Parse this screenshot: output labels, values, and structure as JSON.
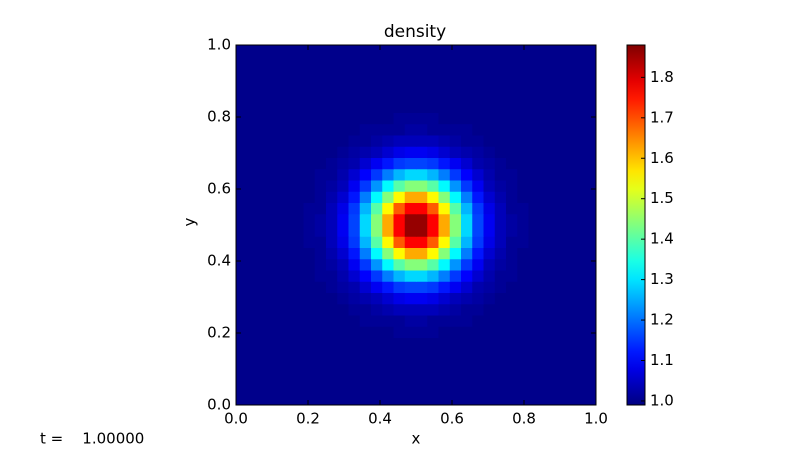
{
  "chart_data": {
    "type": "heatmap",
    "title": "density",
    "x_label": "x",
    "y_label": "y",
    "annotation": "t =    1.00000",
    "colormap": "jet",
    "xlim": [
      0,
      1
    ],
    "ylim": [
      0,
      1
    ],
    "xticks": [
      {
        "value": 0,
        "label": "0.0"
      },
      {
        "value": 0.2,
        "label": "0.2"
      },
      {
        "value": 0.4,
        "label": "0.4"
      },
      {
        "value": 0.6,
        "label": "0.6"
      },
      {
        "value": 0.8,
        "label": "0.8"
      },
      {
        "value": 1,
        "label": "1.0"
      }
    ],
    "yticks": [
      {
        "value": 0,
        "label": "0.0"
      },
      {
        "value": 0.2,
        "label": "0.2"
      },
      {
        "value": 0.4,
        "label": "0.4"
      },
      {
        "value": 0.6,
        "label": "0.6"
      },
      {
        "value": 0.8,
        "label": "0.8"
      },
      {
        "value": 1,
        "label": "1.0"
      }
    ],
    "clim": [
      0.99,
      1.88
    ],
    "cticks": [
      {
        "value": 1,
        "label": "1.0"
      },
      1.1,
      1.2,
      1.3,
      1.4,
      1.5,
      1.6,
      1.7,
      1.8
    ],
    "z": [
      [
        1,
        1,
        1,
        1,
        1,
        1,
        1,
        1,
        1,
        1,
        1,
        1,
        1,
        1,
        1,
        1,
        1,
        1,
        1,
        1,
        1,
        1,
        1,
        1,
        1,
        1,
        1,
        1,
        1,
        1,
        1,
        1
      ],
      [
        1,
        1,
        1,
        1,
        1,
        1,
        1,
        1,
        1,
        1,
        1,
        1,
        1,
        1,
        1,
        1,
        1,
        1,
        1,
        1,
        1,
        1,
        1,
        1,
        1,
        1,
        1,
        1,
        1,
        1,
        1,
        1
      ],
      [
        1,
        1,
        1,
        1,
        1,
        1,
        1,
        1,
        1,
        1,
        1,
        1,
        1,
        1,
        1,
        1,
        1,
        1,
        1,
        1,
        1,
        1,
        1,
        1,
        1,
        1,
        1,
        1,
        1,
        1,
        1,
        1
      ],
      [
        1,
        1,
        1,
        1,
        1,
        1,
        1,
        1,
        1,
        1,
        1,
        1,
        1,
        1,
        1,
        1,
        1,
        1,
        1,
        1,
        1,
        1,
        1,
        1,
        1,
        1,
        1,
        1,
        1,
        1,
        1,
        1
      ],
      [
        1,
        1,
        1,
        1,
        1,
        1,
        1,
        1,
        1,
        1,
        1,
        1,
        1,
        1,
        1,
        1,
        1,
        1,
        1,
        1,
        1,
        1,
        1,
        1,
        1,
        1,
        1,
        1,
        1,
        1,
        1,
        1
      ],
      [
        1,
        1,
        1,
        1,
        1,
        1,
        1,
        1,
        1,
        1,
        1,
        1,
        1,
        1,
        1,
        1,
        1,
        1,
        1,
        1,
        1,
        1,
        1,
        1,
        1,
        1,
        1,
        1,
        1,
        1,
        1,
        1
      ],
      [
        1,
        1,
        1,
        1,
        1,
        1,
        1,
        1,
        1,
        1,
        1,
        1,
        1,
        1,
        1.01,
        1.01,
        1.01,
        1.01,
        1,
        1,
        1,
        1,
        1,
        1,
        1,
        1,
        1,
        1,
        1,
        1,
        1,
        1
      ],
      [
        1,
        1,
        1,
        1,
        1,
        1,
        1,
        1,
        1,
        1,
        1,
        1.01,
        1.01,
        1.01,
        1.01,
        1.02,
        1.02,
        1.01,
        1.01,
        1.01,
        1.01,
        1,
        1,
        1,
        1,
        1,
        1,
        1,
        1,
        1,
        1,
        1
      ],
      [
        1,
        1,
        1,
        1,
        1,
        1,
        1,
        1,
        1,
        1,
        1.01,
        1.01,
        1.02,
        1.03,
        1.04,
        1.04,
        1.04,
        1.04,
        1.03,
        1.02,
        1.01,
        1.01,
        1,
        1,
        1,
        1,
        1,
        1,
        1,
        1,
        1,
        1
      ],
      [
        1,
        1,
        1,
        1,
        1,
        1,
        1,
        1,
        1,
        1.01,
        1.02,
        1.03,
        1.04,
        1.06,
        1.08,
        1.09,
        1.09,
        1.08,
        1.06,
        1.04,
        1.03,
        1.02,
        1.01,
        1,
        1,
        1,
        1,
        1,
        1,
        1,
        1,
        1
      ],
      [
        1,
        1,
        1,
        1,
        1,
        1,
        1,
        1,
        1.01,
        1.02,
        1.03,
        1.06,
        1.09,
        1.12,
        1.15,
        1.16,
        1.16,
        1.15,
        1.12,
        1.09,
        1.06,
        1.03,
        1.02,
        1.01,
        1,
        1,
        1,
        1,
        1,
        1,
        1,
        1
      ],
      [
        1,
        1,
        1,
        1,
        1,
        1,
        1,
        1.01,
        1.01,
        1.03,
        1.06,
        1.1,
        1.15,
        1.21,
        1.26,
        1.29,
        1.29,
        1.26,
        1.21,
        1.15,
        1.1,
        1.06,
        1.03,
        1.01,
        1.01,
        1,
        1,
        1,
        1,
        1,
        1,
        1
      ],
      [
        1,
        1,
        1,
        1,
        1,
        1,
        1,
        1.01,
        1.02,
        1.04,
        1.09,
        1.15,
        1.23,
        1.32,
        1.4,
        1.44,
        1.44,
        1.4,
        1.32,
        1.23,
        1.15,
        1.09,
        1.04,
        1.02,
        1.01,
        1,
        1,
        1,
        1,
        1,
        1,
        1
      ],
      [
        1,
        1,
        1,
        1,
        1,
        1,
        1,
        1.01,
        1.03,
        1.06,
        1.12,
        1.21,
        1.32,
        1.44,
        1.55,
        1.62,
        1.62,
        1.55,
        1.44,
        1.32,
        1.21,
        1.12,
        1.06,
        1.03,
        1.01,
        1,
        1,
        1,
        1,
        1,
        1,
        1
      ],
      [
        1,
        1,
        1,
        1,
        1,
        1,
        1.01,
        1.01,
        1.04,
        1.08,
        1.15,
        1.26,
        1.4,
        1.55,
        1.69,
        1.77,
        1.77,
        1.69,
        1.55,
        1.4,
        1.26,
        1.15,
        1.08,
        1.04,
        1.01,
        1.01,
        1,
        1,
        1,
        1,
        1,
        1
      ],
      [
        1,
        1,
        1,
        1,
        1,
        1,
        1.01,
        1.02,
        1.04,
        1.09,
        1.16,
        1.29,
        1.44,
        1.62,
        1.77,
        1.86,
        1.86,
        1.77,
        1.62,
        1.44,
        1.29,
        1.16,
        1.09,
        1.04,
        1.02,
        1.01,
        1,
        1,
        1,
        1,
        1,
        1
      ],
      [
        1,
        1,
        1,
        1,
        1,
        1,
        1.01,
        1.02,
        1.04,
        1.09,
        1.16,
        1.29,
        1.44,
        1.62,
        1.77,
        1.86,
        1.86,
        1.77,
        1.62,
        1.44,
        1.29,
        1.16,
        1.09,
        1.04,
        1.02,
        1.01,
        1,
        1,
        1,
        1,
        1,
        1
      ],
      [
        1,
        1,
        1,
        1,
        1,
        1,
        1.01,
        1.01,
        1.04,
        1.08,
        1.15,
        1.26,
        1.4,
        1.55,
        1.69,
        1.77,
        1.77,
        1.69,
        1.55,
        1.4,
        1.26,
        1.15,
        1.08,
        1.04,
        1.01,
        1.01,
        1,
        1,
        1,
        1,
        1,
        1
      ],
      [
        1,
        1,
        1,
        1,
        1,
        1,
        1,
        1.01,
        1.03,
        1.06,
        1.12,
        1.21,
        1.32,
        1.44,
        1.55,
        1.62,
        1.62,
        1.55,
        1.44,
        1.32,
        1.21,
        1.12,
        1.06,
        1.03,
        1.01,
        1,
        1,
        1,
        1,
        1,
        1,
        1
      ],
      [
        1,
        1,
        1,
        1,
        1,
        1,
        1,
        1.01,
        1.02,
        1.04,
        1.09,
        1.15,
        1.23,
        1.32,
        1.4,
        1.44,
        1.44,
        1.4,
        1.32,
        1.23,
        1.15,
        1.09,
        1.04,
        1.02,
        1.01,
        1,
        1,
        1,
        1,
        1,
        1,
        1
      ],
      [
        1,
        1,
        1,
        1,
        1,
        1,
        1,
        1.01,
        1.01,
        1.03,
        1.06,
        1.1,
        1.15,
        1.21,
        1.26,
        1.29,
        1.29,
        1.26,
        1.21,
        1.15,
        1.1,
        1.06,
        1.03,
        1.01,
        1.01,
        1,
        1,
        1,
        1,
        1,
        1,
        1
      ],
      [
        1,
        1,
        1,
        1,
        1,
        1,
        1,
        1,
        1.01,
        1.02,
        1.03,
        1.06,
        1.09,
        1.12,
        1.15,
        1.16,
        1.16,
        1.15,
        1.12,
        1.09,
        1.06,
        1.03,
        1.02,
        1.01,
        1,
        1,
        1,
        1,
        1,
        1,
        1,
        1
      ],
      [
        1,
        1,
        1,
        1,
        1,
        1,
        1,
        1,
        1,
        1.01,
        1.02,
        1.03,
        1.04,
        1.06,
        1.08,
        1.09,
        1.09,
        1.08,
        1.06,
        1.04,
        1.03,
        1.02,
        1.01,
        1,
        1,
        1,
        1,
        1,
        1,
        1,
        1,
        1
      ],
      [
        1,
        1,
        1,
        1,
        1,
        1,
        1,
        1,
        1,
        1,
        1.01,
        1.01,
        1.02,
        1.03,
        1.04,
        1.04,
        1.04,
        1.04,
        1.03,
        1.02,
        1.01,
        1.01,
        1,
        1,
        1,
        1,
        1,
        1,
        1,
        1,
        1,
        1
      ],
      [
        1,
        1,
        1,
        1,
        1,
        1,
        1,
        1,
        1,
        1,
        1,
        1.01,
        1.01,
        1.01,
        1.01,
        1.02,
        1.02,
        1.01,
        1.01,
        1.01,
        1.01,
        1,
        1,
        1,
        1,
        1,
        1,
        1,
        1,
        1,
        1,
        1
      ],
      [
        1,
        1,
        1,
        1,
        1,
        1,
        1,
        1,
        1,
        1,
        1,
        1,
        1,
        1,
        1.01,
        1.01,
        1.01,
        1.01,
        1,
        1,
        1,
        1,
        1,
        1,
        1,
        1,
        1,
        1,
        1,
        1,
        1,
        1
      ],
      [
        1,
        1,
        1,
        1,
        1,
        1,
        1,
        1,
        1,
        1,
        1,
        1,
        1,
        1,
        1,
        1,
        1,
        1,
        1,
        1,
        1,
        1,
        1,
        1,
        1,
        1,
        1,
        1,
        1,
        1,
        1,
        1
      ],
      [
        1,
        1,
        1,
        1,
        1,
        1,
        1,
        1,
        1,
        1,
        1,
        1,
        1,
        1,
        1,
        1,
        1,
        1,
        1,
        1,
        1,
        1,
        1,
        1,
        1,
        1,
        1,
        1,
        1,
        1,
        1,
        1
      ],
      [
        1,
        1,
        1,
        1,
        1,
        1,
        1,
        1,
        1,
        1,
        1,
        1,
        1,
        1,
        1,
        1,
        1,
        1,
        1,
        1,
        1,
        1,
        1,
        1,
        1,
        1,
        1,
        1,
        1,
        1,
        1,
        1
      ],
      [
        1,
        1,
        1,
        1,
        1,
        1,
        1,
        1,
        1,
        1,
        1,
        1,
        1,
        1,
        1,
        1,
        1,
        1,
        1,
        1,
        1,
        1,
        1,
        1,
        1,
        1,
        1,
        1,
        1,
        1,
        1,
        1
      ],
      [
        1,
        1,
        1,
        1,
        1,
        1,
        1,
        1,
        1,
        1,
        1,
        1,
        1,
        1,
        1,
        1,
        1,
        1,
        1,
        1,
        1,
        1,
        1,
        1,
        1,
        1,
        1,
        1,
        1,
        1,
        1,
        1
      ],
      [
        1,
        1,
        1,
        1,
        1,
        1,
        1,
        1,
        1,
        1,
        1,
        1,
        1,
        1,
        1,
        1,
        1,
        1,
        1,
        1,
        1,
        1,
        1,
        1,
        1,
        1,
        1,
        1,
        1,
        1,
        1,
        1
      ]
    ]
  }
}
